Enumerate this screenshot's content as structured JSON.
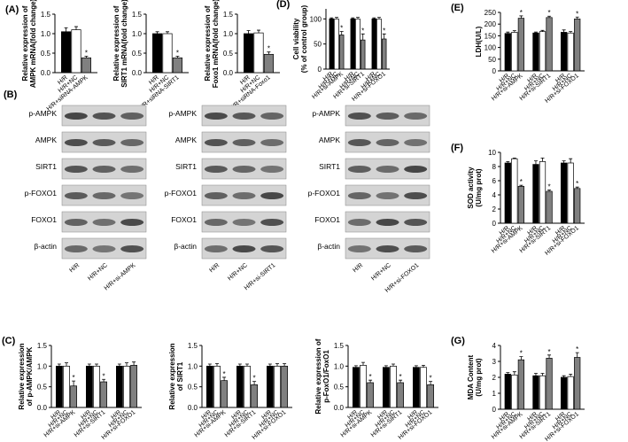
{
  "chart_data": [
    {
      "type": "bar",
      "panel_label": "(A)",
      "ylabel": [
        "Relative expression of",
        "AMPK mRNA(fold change)"
      ],
      "categories": [
        "H/R",
        "H/R+NC",
        "H/R+siRNA-AMPK"
      ],
      "values": [
        1.05,
        1.1,
        0.38
      ],
      "errors": [
        0.1,
        0.08,
        0.04
      ],
      "markers": [
        null,
        null,
        "*"
      ],
      "colors": [
        "#000000",
        "#ffffff",
        "#808080"
      ],
      "ylim": [
        0,
        1.5
      ],
      "yticks": [
        {
          "value": 0,
          "label": "0.0"
        },
        0.5,
        {
          "value": 1,
          "label": "1.0"
        },
        1.5
      ]
    },
    {
      "type": "bar",
      "ylabel": [
        "Relative expression of",
        "SIRT1 mRNA(fold change)"
      ],
      "categories": [
        "H/R",
        "H/R+NC",
        "H/R+siRNA-SIRT1"
      ],
      "values": [
        1.0,
        1.0,
        0.38
      ],
      "errors": [
        0.05,
        0.05,
        0.04
      ],
      "markers": [
        null,
        null,
        "*"
      ],
      "colors": [
        "#000000",
        "#ffffff",
        "#808080"
      ],
      "ylim": [
        0,
        1.5
      ],
      "yticks": [
        {
          "value": 0,
          "label": "0.0"
        },
        0.5,
        {
          "value": 1,
          "label": "1.0"
        },
        1.5
      ]
    },
    {
      "type": "bar",
      "ylabel": [
        "Relative expression of",
        "Foxo1 mRNA(fold change)"
      ],
      "categories": [
        "H/R",
        "H/R+NC",
        "H/R+siRNA-Foxo1"
      ],
      "values": [
        1.0,
        1.02,
        0.47
      ],
      "errors": [
        0.08,
        0.07,
        0.06
      ],
      "markers": [
        null,
        null,
        "*"
      ],
      "colors": [
        "#000000",
        "#ffffff",
        "#808080"
      ],
      "ylim": [
        0,
        1.5
      ],
      "yticks": [
        {
          "value": 0,
          "label": "0.0"
        },
        0.5,
        {
          "value": 1,
          "label": "1.0"
        },
        1.5
      ]
    },
    {
      "type": "bar",
      "panel_label": "(D)",
      "ylabel": [
        "Cell viability",
        "(% of control group)"
      ],
      "categories": [
        "H/R",
        "H/R+NC",
        "H/R+si-AMPK",
        "H/R",
        "H/R+NC",
        "H/R+si-SIRT1",
        "H/R",
        "H/R+NC",
        "H/R+si-FOXO1"
      ],
      "values": [
        100,
        100,
        68,
        100,
        100,
        58,
        100,
        100,
        60
      ],
      "errors": [
        2,
        3,
        7,
        2,
        3,
        12,
        2,
        3,
        10
      ],
      "markers": [
        null,
        null,
        "*",
        null,
        null,
        "*",
        null,
        null,
        "*"
      ],
      "colors": [
        "#000000",
        "#ffffff",
        "#808080",
        "#000000",
        "#ffffff",
        "#808080",
        "#000000",
        "#ffffff",
        "#808080"
      ],
      "ylim": [
        0,
        120
      ],
      "yticks": [
        0,
        50,
        100
      ]
    },
    {
      "type": "bar",
      "panel_label": "(E)",
      "ylabel": [
        "LDH(U/L)"
      ],
      "categories": [
        "H/R",
        "H/R+NC",
        "H/R+si-AMPK",
        "H/R",
        "H/R+NC",
        "H/R+si-SIRT1",
        "H/R",
        "H/R+NC",
        "H/R+si-FOXO1"
      ],
      "values": [
        160,
        165,
        225,
        162,
        168,
        228,
        165,
        162,
        222
      ],
      "errors": [
        6,
        7,
        10,
        4,
        5,
        6,
        10,
        6,
        8
      ],
      "markers": [
        null,
        null,
        "*",
        null,
        null,
        "*",
        null,
        null,
        "*"
      ],
      "colors": [
        "#000000",
        "#ffffff",
        "#808080",
        "#000000",
        "#ffffff",
        "#808080",
        "#000000",
        "#ffffff",
        "#808080"
      ],
      "ylim": [
        0,
        250
      ],
      "yticks": [
        0,
        50,
        100,
        150,
        200,
        250
      ]
    },
    {
      "type": "bar",
      "panel_label": "(C)",
      "ylabel": [
        "Relative expression",
        "of p-AMPK/AMPK"
      ],
      "categories": [
        "H/R",
        "H/R+NC",
        "H/R+si-AMPK",
        "H/R",
        "H/R+NC",
        "H/R+si-SIRT1",
        "H/R",
        "H/R+NC",
        "H/R+si-FOXO1"
      ],
      "values": [
        1.0,
        1.0,
        0.52,
        1.0,
        1.0,
        0.62,
        1.0,
        1.0,
        1.02
      ],
      "errors": [
        0.05,
        0.08,
        0.12,
        0.05,
        0.05,
        0.06,
        0.05,
        0.08,
        0.08
      ],
      "markers": [
        null,
        null,
        "*",
        null,
        null,
        "*",
        null,
        null,
        null
      ],
      "colors": [
        "#000000",
        "#ffffff",
        "#808080",
        "#000000",
        "#ffffff",
        "#808080",
        "#000000",
        "#ffffff",
        "#808080"
      ],
      "ylim": [
        0,
        1.5
      ],
      "yticks": [
        {
          "value": 0,
          "label": "0.0"
        },
        0.5,
        {
          "value": 1,
          "label": "1.0"
        },
        1.5
      ]
    },
    {
      "type": "bar",
      "ylabel": [
        "Relative expression",
        "of SIRT1"
      ],
      "categories": [
        "H/R",
        "H/R+NC",
        "H/R+si-AMPK",
        "H/R",
        "H/R+NC",
        "H/R+si-SIRT1",
        "H/R",
        "H/R+NC",
        "H/R+si-FOXO1"
      ],
      "values": [
        1.0,
        1.0,
        0.65,
        1.0,
        1.0,
        0.55,
        1.0,
        1.0,
        1.0
      ],
      "errors": [
        0.05,
        0.06,
        0.08,
        0.05,
        0.05,
        0.08,
        0.05,
        0.06,
        0.06
      ],
      "markers": [
        null,
        null,
        "*",
        null,
        null,
        "*",
        null,
        null,
        null
      ],
      "colors": [
        "#000000",
        "#ffffff",
        "#808080",
        "#000000",
        "#ffffff",
        "#808080",
        "#000000",
        "#ffffff",
        "#808080"
      ],
      "ylim": [
        0,
        1.5
      ],
      "yticks": [
        {
          "value": 0,
          "label": "0.0"
        },
        0.5,
        {
          "value": 1,
          "label": "1.0"
        },
        1.5
      ]
    },
    {
      "type": "bar",
      "ylabel": [
        "Relative expression of",
        "p-FoxO1/FoxO1"
      ],
      "categories": [
        "H/R",
        "H/R+NC",
        "H/R+si-AMPK",
        "H/R",
        "H/R+NC",
        "H/R+si-SIRT1",
        "H/R",
        "H/R+NC",
        "H/R+si-FOXO1"
      ],
      "values": [
        0.97,
        1.02,
        0.6,
        0.97,
        1.0,
        0.6,
        0.97,
        0.97,
        0.55
      ],
      "errors": [
        0.04,
        0.07,
        0.06,
        0.04,
        0.05,
        0.06,
        0.04,
        0.05,
        0.08
      ],
      "markers": [
        null,
        null,
        "*",
        null,
        null,
        "*",
        null,
        null,
        "*"
      ],
      "colors": [
        "#000000",
        "#ffffff",
        "#808080",
        "#000000",
        "#ffffff",
        "#808080",
        "#000000",
        "#ffffff",
        "#808080"
      ],
      "ylim": [
        0,
        1.5
      ],
      "yticks": [
        {
          "value": 0,
          "label": "0.0"
        },
        0.5,
        {
          "value": 1,
          "label": "1.0"
        },
        1.5
      ]
    },
    {
      "type": "bar",
      "panel_label": "(F)",
      "ylabel": [
        "SOD activity",
        "(U/mg prot)"
      ],
      "categories": [
        "H/R",
        "H/R+NC",
        "H/R+si-AMPK",
        "H/R",
        "H/R+NC",
        "H/R+si-SIRT1",
        "H/R",
        "H/R+NC",
        "H/R+si-FOXO1"
      ],
      "values": [
        8.5,
        9.1,
        5.2,
        8.3,
        8.7,
        4.5,
        8.5,
        8.5,
        4.9
      ],
      "errors": [
        0.2,
        0.1,
        0.15,
        0.5,
        0.5,
        0.2,
        0.3,
        0.6,
        0.2
      ],
      "markers": [
        null,
        null,
        "*",
        null,
        null,
        "*",
        null,
        null,
        "*"
      ],
      "colors": [
        "#000000",
        "#ffffff",
        "#808080",
        "#000000",
        "#ffffff",
        "#808080",
        "#000000",
        "#ffffff",
        "#808080"
      ],
      "ylim": [
        0,
        10
      ],
      "yticks": [
        0,
        2,
        4,
        6,
        8,
        10
      ]
    },
    {
      "type": "bar",
      "panel_label": "(G)",
      "ylabel": [
        "MDA Content",
        "(U/mg prot)"
      ],
      "categories": [
        "H/R",
        "H/R+NC",
        "H/R+si-AMPK",
        "H/R",
        "H/R+NC",
        "H/R+si-SIRT1",
        "H/R",
        "H/R+NC",
        "H/R+si-FOXO1"
      ],
      "values": [
        2.2,
        2.15,
        3.1,
        2.1,
        2.1,
        3.2,
        2.0,
        2.05,
        3.25
      ],
      "errors": [
        0.1,
        0.2,
        0.2,
        0.15,
        0.15,
        0.2,
        0.1,
        0.15,
        0.3
      ],
      "markers": [
        null,
        null,
        "*",
        null,
        null,
        "*",
        null,
        null,
        "*"
      ],
      "colors": [
        "#000000",
        "#ffffff",
        "#808080",
        "#000000",
        "#ffffff",
        "#808080",
        "#000000",
        "#ffffff",
        "#808080"
      ],
      "ylim": [
        0,
        4
      ],
      "yticks": [
        0,
        1,
        2,
        3,
        4
      ]
    }
  ],
  "blot_panel": {
    "panel_label": "(B)",
    "blots": [
      {
        "rows": [
          "p-AMPK",
          "AMPK",
          "SIRT1",
          "p-FOXO1",
          "FOXO1",
          "β-actin"
        ],
        "lanes": [
          "H/R",
          "H/R+NC",
          "H/R+si-AMPK"
        ]
      },
      {
        "rows": [
          "p-AMPK",
          "AMPK",
          "SIRT1",
          "p-FOXO1",
          "FOXO1",
          "β-actin"
        ],
        "lanes": [
          "H/R",
          "H/R+NC",
          "H/R+si-SIRT1"
        ]
      },
      {
        "rows": [
          "p-AMPK",
          "AMPK",
          "SIRT1",
          "p-FOXO1",
          "FOXO1",
          "β-actin"
        ],
        "lanes": [
          "H/R",
          "H/R+NC",
          "H/R+si-FOXO1"
        ]
      }
    ]
  }
}
